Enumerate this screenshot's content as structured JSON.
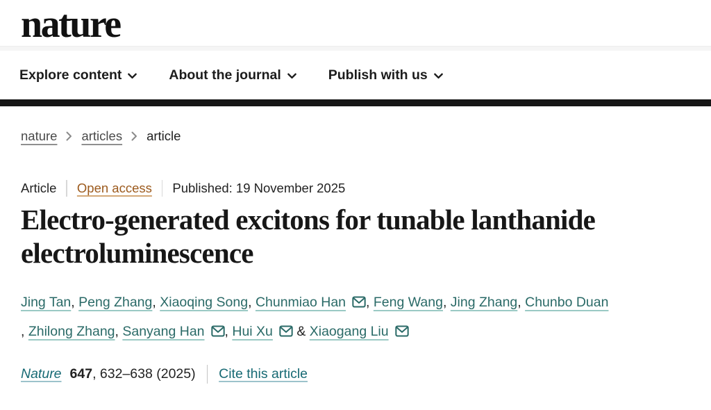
{
  "header": {
    "logo_text": "nature"
  },
  "nav": {
    "items": [
      {
        "label": "Explore content"
      },
      {
        "label": "About the journal"
      },
      {
        "label": "Publish with us"
      }
    ]
  },
  "breadcrumb": {
    "items": [
      {
        "label": "nature",
        "current": false
      },
      {
        "label": "articles",
        "current": false
      },
      {
        "label": "article",
        "current": true
      }
    ]
  },
  "meta": {
    "type": "Article",
    "access_link": "Open access",
    "published": "Published: 19 November 2025"
  },
  "article": {
    "title": "Electro-generated excitons for tunable lanthanide electroluminescence"
  },
  "authors": {
    "separator": ", ",
    "last_separator": " & ",
    "names": [
      {
        "name": "Jing Tan",
        "email": false
      },
      {
        "name": "Peng Zhang",
        "email": false
      },
      {
        "name": "Xiaoqing Song",
        "email": false
      },
      {
        "name": "Chunmiao Han",
        "email": true
      },
      {
        "name": "Feng Wang",
        "email": false
      },
      {
        "name": "Jing Zhang",
        "email": false
      },
      {
        "name": "Chunbo Duan",
        "email": false,
        "break_after": true
      },
      {
        "name": "Zhilong Zhang",
        "email": false
      },
      {
        "name": "Sanyang Han",
        "email": true
      },
      {
        "name": "Hui Xu",
        "email": true
      },
      {
        "name": "Xiaogang Liu",
        "email": true
      }
    ]
  },
  "citation": {
    "journal": "Nature",
    "volume": "647",
    "pages_text": ", 632–638 (2025)",
    "cite_link": "Cite this article"
  },
  "icons": {
    "nav_chevron": "chevron-down",
    "breadcrumb_separator": "chevron-right",
    "email": "envelope"
  },
  "colors": {
    "open_access": "#9c5a1d",
    "author_link": "#2a6a67",
    "citation_link": "#176a74",
    "top_bar": "#161616"
  }
}
